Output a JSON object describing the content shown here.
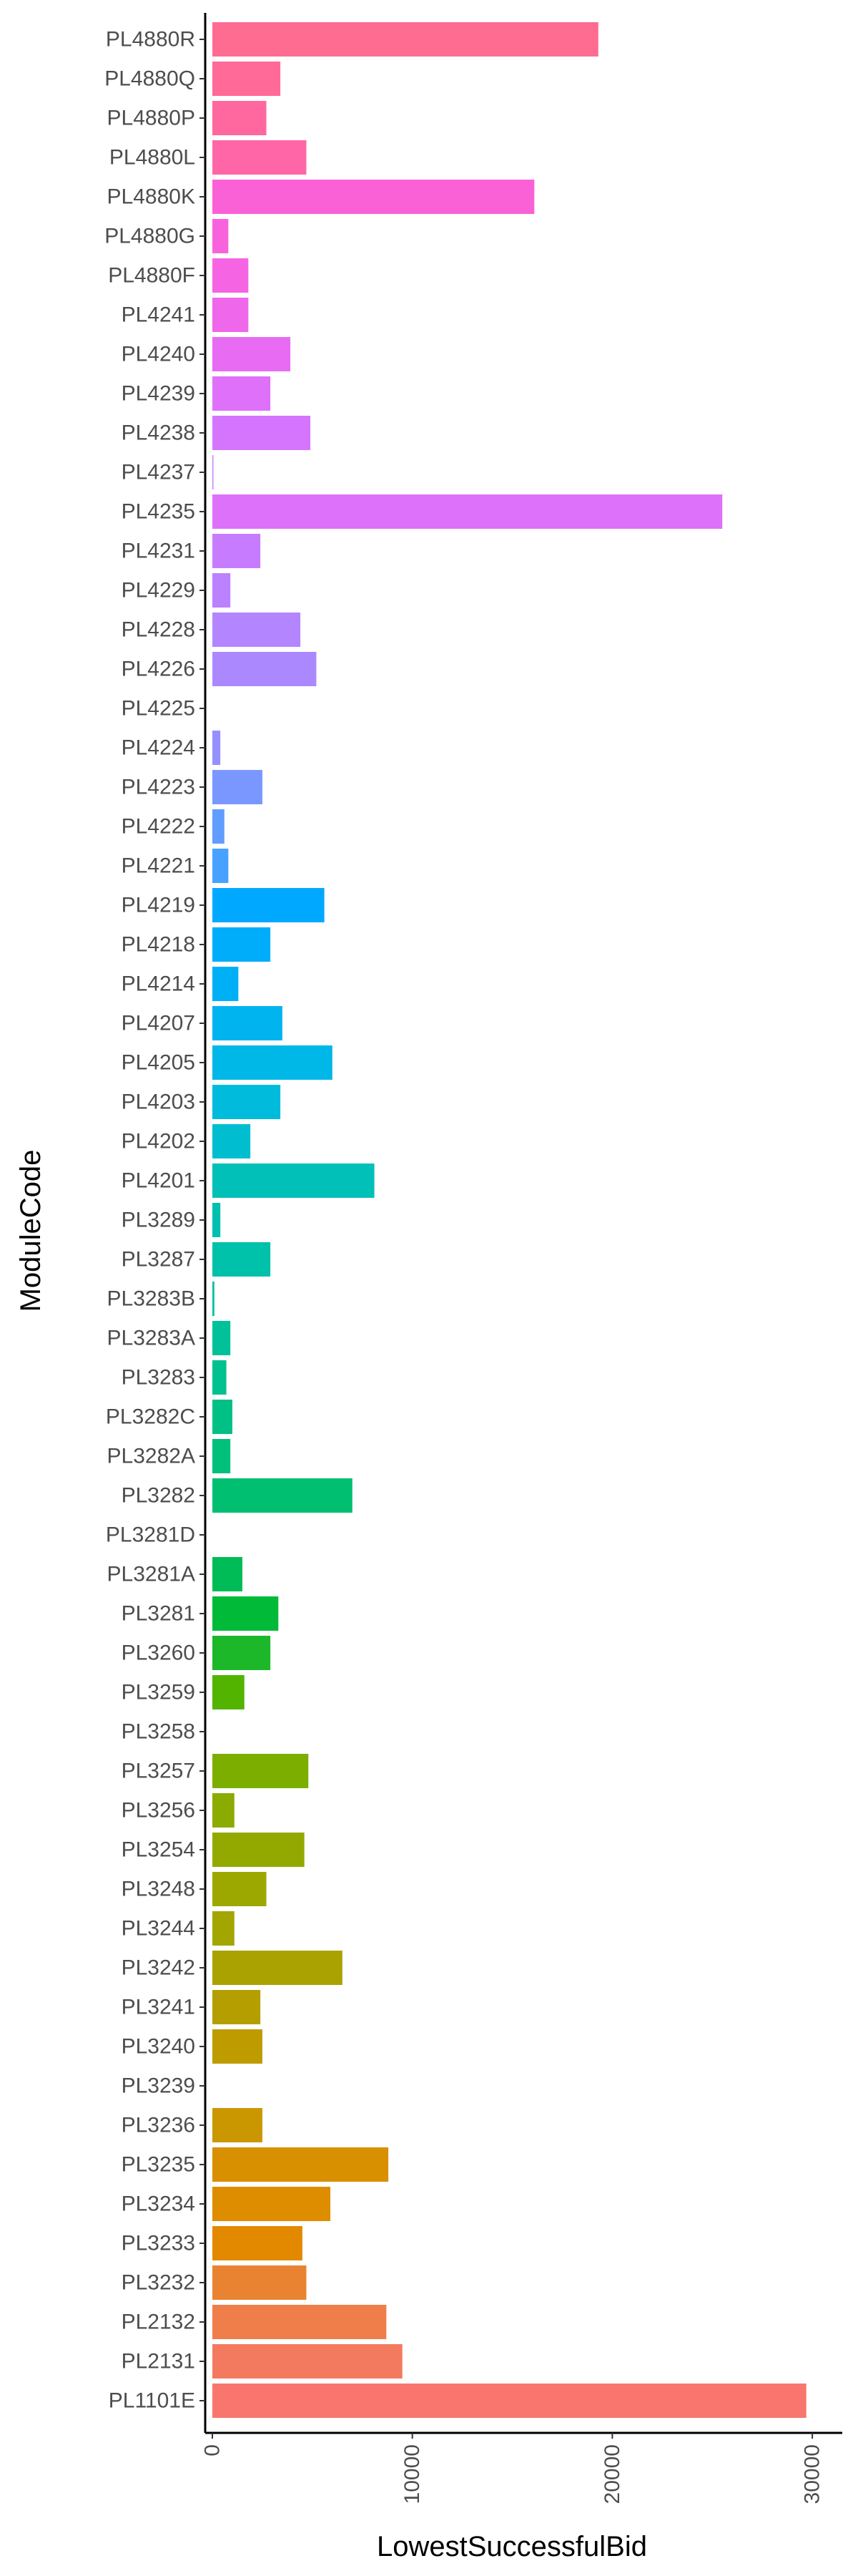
{
  "chart_data": {
    "type": "bar",
    "orientation": "horizontal",
    "title": "",
    "xlabel": "LowestSuccessfulBid",
    "ylabel": "ModuleCode",
    "xlim": [
      0,
      31000
    ],
    "x_ticks": [
      0,
      10000,
      20000,
      30000
    ],
    "x_tick_labels": [
      "0",
      "10000",
      "20000",
      "30000"
    ],
    "grid": false,
    "legend": "none",
    "categories": [
      "PL4880R",
      "PL4880Q",
      "PL4880P",
      "PL4880L",
      "PL4880K",
      "PL4880G",
      "PL4880F",
      "PL4241",
      "PL4240",
      "PL4239",
      "PL4238",
      "PL4237",
      "PL4235",
      "PL4231",
      "PL4229",
      "PL4228",
      "PL4226",
      "PL4225",
      "PL4224",
      "PL4223",
      "PL4222",
      "PL4221",
      "PL4219",
      "PL4218",
      "PL4214",
      "PL4207",
      "PL4205",
      "PL4203",
      "PL4202",
      "PL4201",
      "PL3289",
      "PL3287",
      "PL3283B",
      "PL3283A",
      "PL3283",
      "PL3282C",
      "PL3282A",
      "PL3282",
      "PL3281D",
      "PL3281A",
      "PL3281",
      "PL3260",
      "PL3259",
      "PL3258",
      "PL3257",
      "PL3256",
      "PL3254",
      "PL3248",
      "PL3244",
      "PL3242",
      "PL3241",
      "PL3240",
      "PL3239",
      "PL3236",
      "PL3235",
      "PL3234",
      "PL3233",
      "PL3232",
      "PL2132",
      "PL2131",
      "PL1101E"
    ],
    "values": [
      19300,
      3400,
      2700,
      4700,
      16100,
      800,
      1800,
      1800,
      3900,
      2900,
      4900,
      50,
      25500,
      2400,
      900,
      4400,
      5200,
      0,
      400,
      2500,
      600,
      800,
      5600,
      2900,
      1300,
      3500,
      6000,
      3400,
      1900,
      8100,
      400,
      2900,
      100,
      900,
      700,
      1000,
      900,
      7000,
      0,
      1500,
      3300,
      2900,
      1600,
      0,
      4800,
      1100,
      4600,
      2700,
      1100,
      6500,
      2400,
      2500,
      0,
      2500,
      8800,
      5900,
      4500,
      4700,
      8700,
      9500,
      29700
    ],
    "colors": [
      "#FF6C91",
      "#FF6A98",
      "#FF689F",
      "#FF66A8",
      "#FB61D7",
      "#F962DD",
      "#F564E3",
      "#EF67EB",
      "#E76BF3",
      "#DE70F9",
      "#D575FE",
      "#CB7BFF",
      "#DD71FA",
      "#C77CFF",
      "#BB81FF",
      "#B385FF",
      "#AC88FF",
      "#A58AFF",
      "#9590FF",
      "#7997FF",
      "#619CFF",
      "#47A2FF",
      "#00A9FF",
      "#00ADFA",
      "#00B0F6",
      "#00B4EF",
      "#00B8E7",
      "#00BBDB",
      "#00BED0",
      "#00C0B8",
      "#00C0AF",
      "#00C1AA",
      "#00C0A3",
      "#00C19A",
      "#00C18F",
      "#00C085",
      "#00C07B",
      "#00BF71",
      "#00BE67",
      "#00BC56",
      "#00BA38",
      "#1CB82A",
      "#53B400",
      "#6BB100",
      "#7CAE00",
      "#8CAB00",
      "#94A900",
      "#9CA700",
      "#A3A500",
      "#AAA200",
      "#B59F00",
      "#BE9C00",
      "#C39A00",
      "#CB9700",
      "#D89000",
      "#DE8C00",
      "#E38900",
      "#EA8331",
      "#F07E4A",
      "#F47A5F",
      "#F8766D"
    ]
  }
}
